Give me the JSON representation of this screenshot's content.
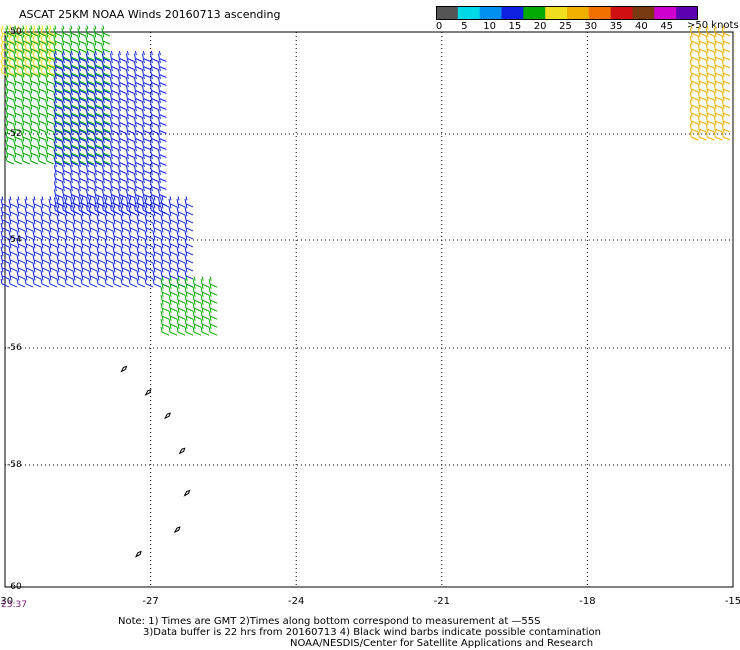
{
  "title": "ASCAT 25KM NOAA Winds 20160713 ascending",
  "colorbar": {
    "tick_labels": [
      "0",
      "5",
      "10",
      "15",
      "20",
      "25",
      "30",
      "35",
      "40",
      "45",
      ">50"
    ],
    "unit": "knots",
    "colors": [
      "#555555",
      "#00d8e8",
      "#0090f0",
      "#1020e0",
      "#00aa00",
      "#f0e020",
      "#f0b000",
      "#f07000",
      "#d01010",
      "#7a3a10",
      "#d000d0",
      "#5a00b0"
    ]
  },
  "chart_data": {
    "type": "wind-barb map",
    "x_ticks": [
      "-30",
      "-27",
      "-24",
      "-21",
      "-18",
      "-15"
    ],
    "y_ticks": [
      "-50",
      "-52",
      "-54",
      "-56",
      "-58",
      "-60"
    ],
    "xlim": [
      -30,
      -15
    ],
    "ylim": [
      -60,
      -50
    ],
    "grid": true,
    "time_label": "23:37",
    "barb_regions": [
      {
        "color": "#f0e020",
        "lon": [
          -30.0,
          -28.8
        ],
        "lat": [
          -51.0,
          -50.0
        ]
      },
      {
        "color": "#00aa00",
        "lon": [
          -29.9,
          -27.8
        ],
        "lat": [
          -52.6,
          -50.0
        ]
      },
      {
        "color": "#1020e0",
        "lon": [
          -28.9,
          -26.6
        ],
        "lat": [
          -53.5,
          -50.5
        ]
      },
      {
        "color": "#1020e0",
        "lon": [
          -30.0,
          -26.1
        ],
        "lat": [
          -55.0,
          -53.3
        ]
      },
      {
        "color": "#00aa00",
        "lon": [
          -26.7,
          -25.5
        ],
        "lat": [
          -55.8,
          -54.8
        ]
      },
      {
        "color": "#f0b000",
        "lon": [
          -15.8,
          -15.0
        ],
        "lat": [
          -52.2,
          -50.0
        ]
      }
    ],
    "black_barbs": [
      {
        "lon": -27.6,
        "lat": -56.4
      },
      {
        "lon": -27.1,
        "lat": -56.8
      },
      {
        "lon": -26.7,
        "lat": -57.2
      },
      {
        "lon": -26.4,
        "lat": -57.8
      },
      {
        "lon": -26.3,
        "lat": -58.5
      },
      {
        "lon": -26.5,
        "lat": -59.1
      },
      {
        "lon": -27.3,
        "lat": -59.5
      }
    ]
  },
  "notes": {
    "line1": "Note: 1) Times are GMT 2)Times along bottom correspond to measurement at —55S",
    "line2": "3)Data buffer is 22 hrs from 20160713 4) Black wind barbs indicate possible contamination",
    "line3": "NOAA/NESDIS/Center for Satellite Applications and Research"
  }
}
